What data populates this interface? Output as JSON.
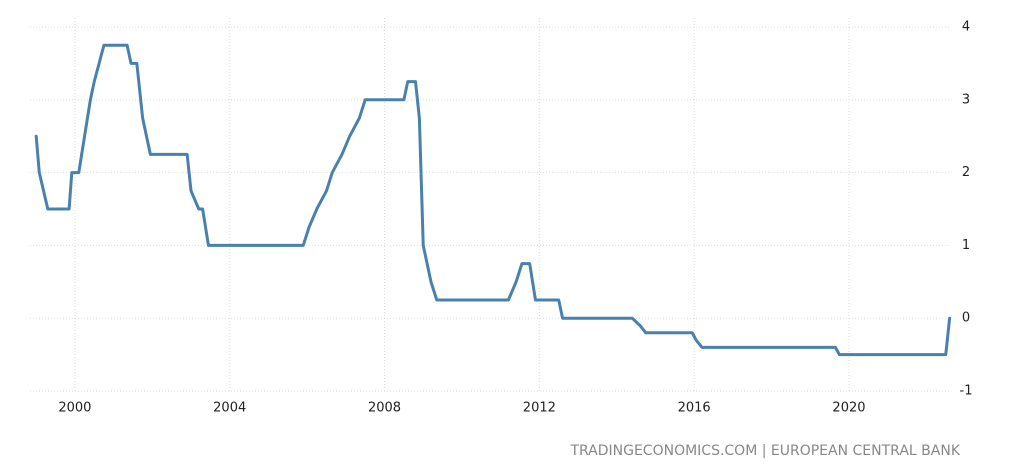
{
  "chart_data": {
    "type": "line",
    "x": [
      1999.0,
      1999.08,
      1999.3,
      1999.85,
      1999.92,
      2000.1,
      2000.25,
      2000.4,
      2000.5,
      2000.75,
      2001.35,
      2001.45,
      2001.6,
      2001.75,
      2001.95,
      2002.9,
      2003.0,
      2003.2,
      2003.3,
      2003.45,
      2005.9,
      2006.05,
      2006.25,
      2006.5,
      2006.65,
      2006.9,
      2007.1,
      2007.35,
      2007.5,
      2008.5,
      2008.6,
      2008.8,
      2008.9,
      2009.0,
      2009.2,
      2009.35,
      2011.2,
      2011.4,
      2011.55,
      2011.75,
      2011.9,
      2012.5,
      2012.6,
      2014.4,
      2014.6,
      2014.75,
      2015.95,
      2016.05,
      2016.2,
      2019.65,
      2019.75,
      2022.5,
      2022.6
    ],
    "values": [
      2.5,
      2.0,
      1.5,
      1.5,
      2.0,
      2.0,
      2.5,
      3.0,
      3.25,
      3.75,
      3.75,
      3.5,
      3.5,
      2.75,
      2.25,
      2.25,
      1.75,
      1.5,
      1.5,
      1.0,
      1.0,
      1.25,
      1.5,
      1.75,
      2.0,
      2.25,
      2.5,
      2.75,
      3.0,
      3.0,
      3.25,
      3.25,
      2.75,
      1.0,
      0.5,
      0.25,
      0.25,
      0.5,
      0.75,
      0.75,
      0.25,
      0.25,
      0,
      0,
      -0.1,
      -0.2,
      -0.2,
      -0.3,
      -0.4,
      -0.4,
      -0.5,
      -0.5,
      0
    ],
    "color": "#4a80ad",
    "xlim": [
      1998.84,
      2022.61
    ],
    "xticks": [
      2000,
      2004,
      2008,
      2012,
      2016,
      2020
    ],
    "ylim": [
      -1,
      4
    ],
    "yticks": [
      -1,
      0,
      1,
      2,
      3,
      4
    ],
    "y_axis_position": "right",
    "grid": true,
    "source": "TRADINGECONOMICS.COM | EUROPEAN CENTRAL BANK"
  }
}
